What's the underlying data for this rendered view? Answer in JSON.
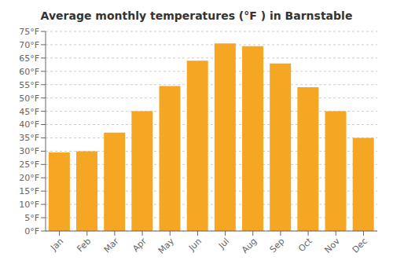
{
  "chart_data": {
    "type": "bar",
    "title": "Average monthly temperatures (°F ) in Barnstable",
    "categories": [
      "Jan",
      "Feb",
      "Mar",
      "Apr",
      "May",
      "Jun",
      "Jul",
      "Aug",
      "Sep",
      "Oct",
      "Nov",
      "Dec"
    ],
    "values": [
      29.5,
      30.0,
      37.0,
      45.0,
      54.5,
      64.0,
      70.5,
      69.5,
      63.0,
      54.0,
      45.0,
      35.0
    ],
    "color": "#F5A623",
    "ylim": [
      0,
      75
    ],
    "yticks": [
      {
        "value": 0,
        "label": "0°F"
      },
      {
        "value": 5,
        "label": "5°F"
      },
      {
        "value": 10,
        "label": "10°F"
      },
      {
        "value": 15,
        "label": "15°F"
      },
      {
        "value": 20,
        "label": "20°F"
      },
      {
        "value": 25,
        "label": "25°F"
      },
      {
        "value": 30,
        "label": "30°F"
      },
      {
        "value": 35,
        "label": "35°F"
      },
      {
        "value": 40,
        "label": "40°F"
      },
      {
        "value": 45,
        "label": "45°F"
      },
      {
        "value": 50,
        "label": "50°F"
      },
      {
        "value": 55,
        "label": "55°F"
      },
      {
        "value": 60,
        "label": "60°F"
      },
      {
        "value": 65,
        "label": "65°F"
      },
      {
        "value": 70,
        "label": "70°F"
      },
      {
        "value": 75,
        "label": "75°F"
      }
    ],
    "grid": true
  }
}
